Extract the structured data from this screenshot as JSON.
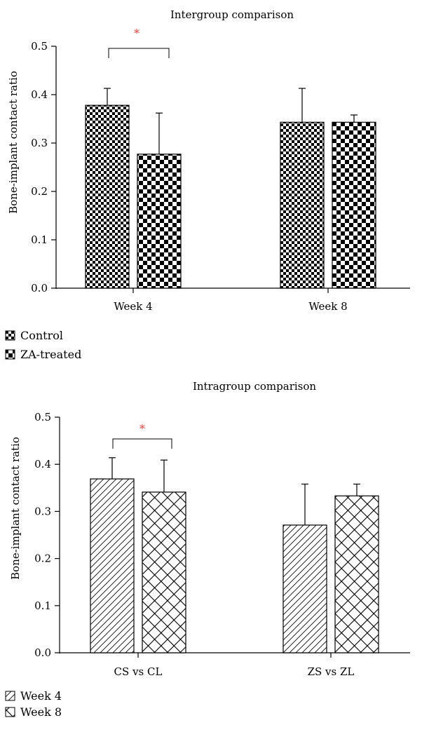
{
  "chart_data": [
    {
      "type": "bar",
      "title": "Intergroup comparison",
      "ylabel": "Bone-implant contact ratio",
      "xlabel": "",
      "ylim": [
        0,
        0.5
      ],
      "yticks": [
        "0.0",
        "0.1",
        "0.2",
        "0.3",
        "0.4",
        "0.5"
      ],
      "categories": [
        "Week 4",
        "Week 8"
      ],
      "series": [
        {
          "name": "Control",
          "values": [
            0.378,
            0.343
          ],
          "errors": [
            0.035,
            0.07
          ],
          "pattern": "fine-checker"
        },
        {
          "name": "ZA-treated",
          "values": [
            0.277,
            0.343
          ],
          "errors": [
            0.085,
            0.015
          ],
          "pattern": "coarse-checker"
        }
      ],
      "significance": [
        {
          "category": "Week 4",
          "label": "*",
          "color": "#e8403a"
        }
      ],
      "legend": "bottom-left"
    },
    {
      "type": "bar",
      "title": "Intragroup comparison",
      "ylabel": "Bone-implant contact ratio",
      "xlabel": "",
      "ylim": [
        0,
        0.5
      ],
      "yticks": [
        "0.0",
        "0.1",
        "0.2",
        "0.3",
        "0.4",
        "0.5"
      ],
      "categories": [
        "CS vs CL",
        "ZS vs ZL"
      ],
      "series": [
        {
          "name": "Week 4",
          "values": [
            0.369,
            0.271
          ],
          "errors": [
            0.045,
            0.087
          ],
          "pattern": "diagonal-hatch"
        },
        {
          "name": "Week 8",
          "values": [
            0.341,
            0.333
          ],
          "errors": [
            0.068,
            0.025
          ],
          "pattern": "crosshatch"
        }
      ],
      "significance": [
        {
          "category": "CS vs CL",
          "label": "*",
          "color": "#e8403a"
        }
      ],
      "legend": "bottom-left"
    }
  ]
}
